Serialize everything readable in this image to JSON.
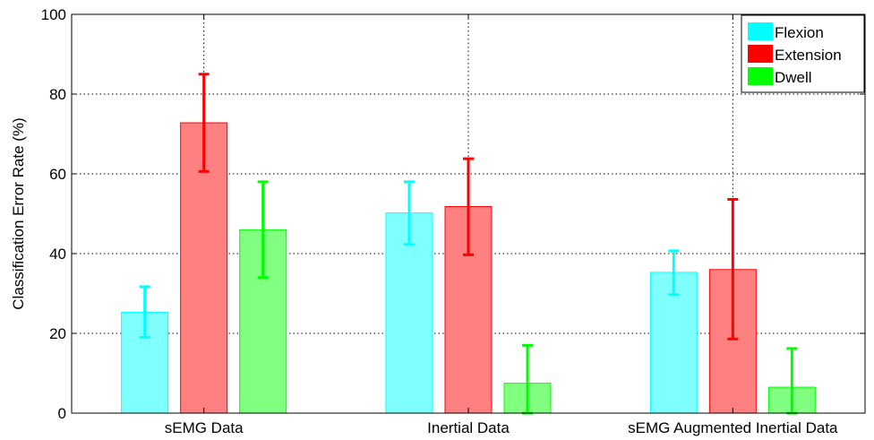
{
  "chart_data": {
    "type": "bar",
    "title": "",
    "xlabel": "",
    "ylabel": "Classification Error Rate (%)",
    "ylim": [
      0,
      100
    ],
    "yticks": [
      0,
      20,
      40,
      60,
      80,
      100
    ],
    "grid": true,
    "legend_position": "top-right",
    "categories": [
      "sEMG Data",
      "Inertial Data",
      "sEMG Augmented Inertial Data"
    ],
    "series": [
      {
        "name": "Flexion",
        "fill": "#80ffff",
        "edge": "#00ffff",
        "values": [
          25.3,
          50.2,
          35.3
        ],
        "error_low": [
          19.0,
          42.3,
          29.7
        ],
        "error_high": [
          31.7,
          58.0,
          40.7
        ]
      },
      {
        "name": "Extension",
        "fill": "#ff8080",
        "edge": "#ff0000",
        "values": [
          72.8,
          51.8,
          36.0
        ],
        "error_low": [
          60.6,
          39.7,
          18.6
        ],
        "error_high": [
          85.0,
          63.8,
          53.6
        ]
      },
      {
        "name": "Dwell",
        "fill": "#80ff80",
        "edge": "#00ff00",
        "values": [
          46.0,
          7.5,
          6.5
        ],
        "error_low": [
          34.0,
          0.0,
          0.0
        ],
        "error_high": [
          58.0,
          17.0,
          16.2
        ]
      }
    ]
  }
}
